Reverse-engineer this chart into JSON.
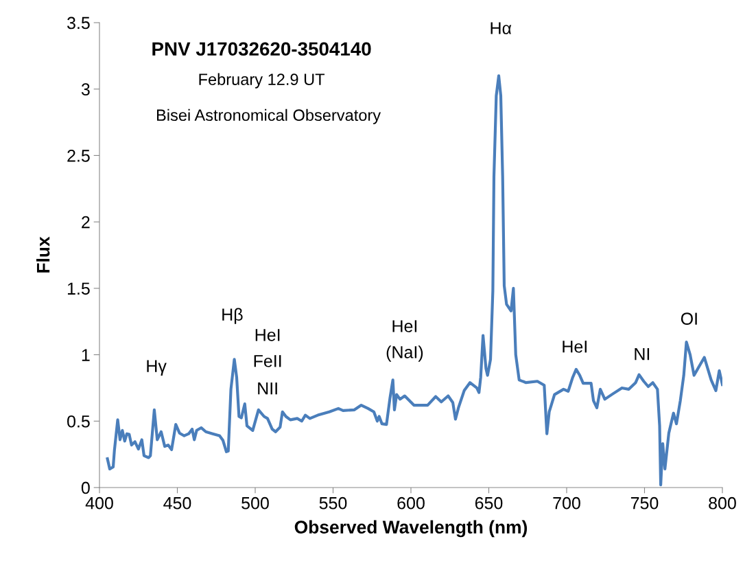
{
  "chart_data": {
    "type": "line",
    "title": "PNV J17032620-3504140",
    "subtitle": "February 12.9 UT",
    "xlabel": "Observed Wavelength (nm)",
    "ylabel": "Flux",
    "annotations": [
      "Bisei Astronomical Observatory",
      "Hγ",
      "Hβ",
      "HeI",
      "FeII",
      "NII",
      "HeI",
      "(NaI)",
      "Hα",
      "HeI",
      "NI",
      "OI"
    ],
    "xlim": [
      400,
      800
    ],
    "xticks": [
      400,
      450,
      500,
      550,
      600,
      650,
      700,
      750,
      800
    ],
    "ylim": [
      0,
      3.5
    ],
    "yticks": [
      0,
      0.5,
      1,
      1.5,
      2,
      2.5,
      3,
      3.5
    ],
    "grid": false,
    "legend": false,
    "marker": "none",
    "line_style": "solid",
    "series": [
      {
        "color": "#4a7ebb",
        "x": [
          405.1,
          406.6,
          408.8,
          409.6,
          411.7,
          413.2,
          414.7,
          416.2,
          417.6,
          419.1,
          420.6,
          422.8,
          425.0,
          427.2,
          428.6,
          431.6,
          432.7,
          435.2,
          437.1,
          439.6,
          441.9,
          444.1,
          446.3,
          449.0,
          451.4,
          454.3,
          457.3,
          459.5,
          460.9,
          462.4,
          465.3,
          468.3,
          472.7,
          477.1,
          479.3,
          481.5,
          482.7,
          484.4,
          486.6,
          488.1,
          489.6,
          491.1,
          493.3,
          494.7,
          498.4,
          502.1,
          505.7,
          507.9,
          510.9,
          513.1,
          516.0,
          517.5,
          519.7,
          522.6,
          527.0,
          529.9,
          532.2,
          535.1,
          540.2,
          547.6,
          553.4,
          556.4,
          563.7,
          568.1,
          572.5,
          576.2,
          578.4,
          579.6,
          581.4,
          584.3,
          586.5,
          588.4,
          589.4,
          590.8,
          593.0,
          596.0,
          601.9,
          605.6,
          610.7,
          615.9,
          619.5,
          623.9,
          626.9,
          628.6,
          630.5,
          634.2,
          637.9,
          642.3,
          643.7,
          644.8,
          646.3,
          648.2,
          649.2,
          651.1,
          652.6,
          653.3,
          654.8,
          656.4,
          657.7,
          658.9,
          659.9,
          661.4,
          664.3,
          665.8,
          667.3,
          669.5,
          673.9,
          681.2,
          685.6,
          687.3,
          688.8,
          692.2,
          698.0,
          701.0,
          703.9,
          706.1,
          708.4,
          710.6,
          715.7,
          717.2,
          719.4,
          721.6,
          724.5,
          729.6,
          735.5,
          739.9,
          744.3,
          746.5,
          749.5,
          752.4,
          755.3,
          758.3,
          759.7,
          760.4,
          761.7,
          763.1,
          765.6,
          768.6,
          770.5,
          773.0,
          775.2,
          776.9,
          779.3,
          781.8,
          784.7,
          788.4,
          792.8,
          795.8,
          798.0,
          800
        ],
        "values": [
          0.217,
          0.14,
          0.155,
          0.28,
          0.51,
          0.36,
          0.43,
          0.35,
          0.405,
          0.4,
          0.32,
          0.345,
          0.29,
          0.36,
          0.24,
          0.225,
          0.24,
          0.585,
          0.36,
          0.42,
          0.31,
          0.32,
          0.285,
          0.475,
          0.41,
          0.39,
          0.405,
          0.44,
          0.36,
          0.43,
          0.45,
          0.42,
          0.405,
          0.39,
          0.355,
          0.27,
          0.275,
          0.74,
          0.965,
          0.83,
          0.535,
          0.525,
          0.63,
          0.465,
          0.43,
          0.585,
          0.535,
          0.52,
          0.44,
          0.42,
          0.455,
          0.57,
          0.535,
          0.51,
          0.52,
          0.5,
          0.545,
          0.52,
          0.545,
          0.57,
          0.595,
          0.58,
          0.585,
          0.62,
          0.595,
          0.57,
          0.5,
          0.535,
          0.48,
          0.475,
          0.67,
          0.81,
          0.585,
          0.7,
          0.665,
          0.69,
          0.62,
          0.62,
          0.62,
          0.685,
          0.645,
          0.69,
          0.64,
          0.515,
          0.6,
          0.73,
          0.79,
          0.75,
          0.715,
          0.83,
          1.145,
          0.895,
          0.845,
          0.965,
          1.48,
          2.34,
          2.95,
          3.1,
          2.95,
          2.34,
          1.52,
          1.38,
          1.33,
          1.5,
          1.0,
          0.81,
          0.79,
          0.8,
          0.77,
          0.405,
          0.57,
          0.7,
          0.74,
          0.725,
          0.83,
          0.89,
          0.845,
          0.785,
          0.785,
          0.655,
          0.6,
          0.74,
          0.665,
          0.705,
          0.75,
          0.74,
          0.79,
          0.85,
          0.8,
          0.76,
          0.79,
          0.74,
          0.465,
          0.02,
          0.33,
          0.14,
          0.41,
          0.56,
          0.48,
          0.655,
          0.845,
          1.095,
          1.0,
          0.845,
          0.905,
          0.98,
          0.81,
          0.73,
          0.88,
          0.775
        ]
      }
    ]
  }
}
